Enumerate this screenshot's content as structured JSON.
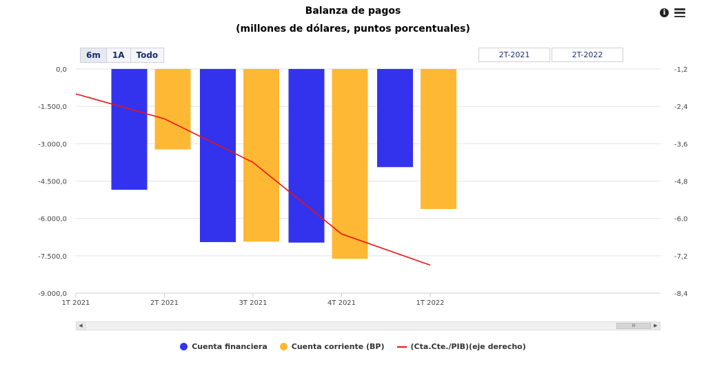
{
  "header": {
    "title": "Balanza de pagos",
    "subtitle": "(millones de dólares, puntos porcentuales)"
  },
  "range_selector": {
    "buttons": [
      "6m",
      "1A",
      "Todo"
    ],
    "from": "2T-2021",
    "to": "2T-2022"
  },
  "legend": {
    "items": [
      {
        "label": "Cuenta financiera",
        "color": "#3333ee",
        "symbol": "dot"
      },
      {
        "label": "Cuenta corriente (BP)",
        "color": "#ffb833",
        "symbol": "dot"
      },
      {
        "label": "(Cta.Cte./PIB)(eje derecho)",
        "color": "#ee1111",
        "symbol": "line"
      }
    ]
  },
  "chart_data": {
    "type": "bar",
    "title": "Balanza de pagos",
    "subtitle": "(millones de dólares, puntos porcentuales)",
    "x_tick_labels": [
      "1T 2021",
      "2T 2021",
      "3T 2021",
      "4T 2021",
      "1T 2022"
    ],
    "categories": [
      "2T 2021",
      "3T 2021",
      "4T 2021",
      "1T 2022"
    ],
    "series": [
      {
        "name": "Cuenta financiera",
        "type": "bar",
        "axis": "left",
        "color": "#3333ee",
        "values": [
          -4850,
          -6950,
          -6970,
          -3940
        ]
      },
      {
        "name": "Cuenta corriente (BP)",
        "type": "bar",
        "axis": "left",
        "color": "#ffb833",
        "values": [
          -3230,
          -6930,
          -7620,
          -5620
        ]
      },
      {
        "name": "(Cta.Cte./PIB)(eje derecho)",
        "type": "line",
        "axis": "right",
        "color": "#ee1111",
        "x": [
          "1T 2021",
          "2T 2021",
          "3T 2021",
          "4T 2021",
          "1T 2022"
        ],
        "values": [
          -2.0,
          -2.8,
          -4.2,
          -6.5,
          -7.5
        ]
      }
    ],
    "y_left": {
      "ylim": [
        -9000,
        0
      ],
      "ticks": [
        0,
        -1500,
        -3000,
        -4500,
        -6000,
        -7500,
        -9000
      ],
      "tick_labels": [
        "0,0",
        "-1.500,0",
        "-3.000,0",
        "-4.500,0",
        "-6.000,0",
        "-7.500,0",
        "-9.000,0"
      ]
    },
    "y_right": {
      "ylim": [
        -8.4,
        -1.2
      ],
      "ticks": [
        -1.2,
        -2.4,
        -3.6,
        -4.8,
        -6.0,
        -7.2,
        -8.4
      ],
      "tick_labels": [
        "-1,2",
        "-2,4",
        "-3,6",
        "-4,8",
        "-6,0",
        "-7,2",
        "-8,4"
      ]
    },
    "grid": true,
    "legend_position": "bottom"
  }
}
